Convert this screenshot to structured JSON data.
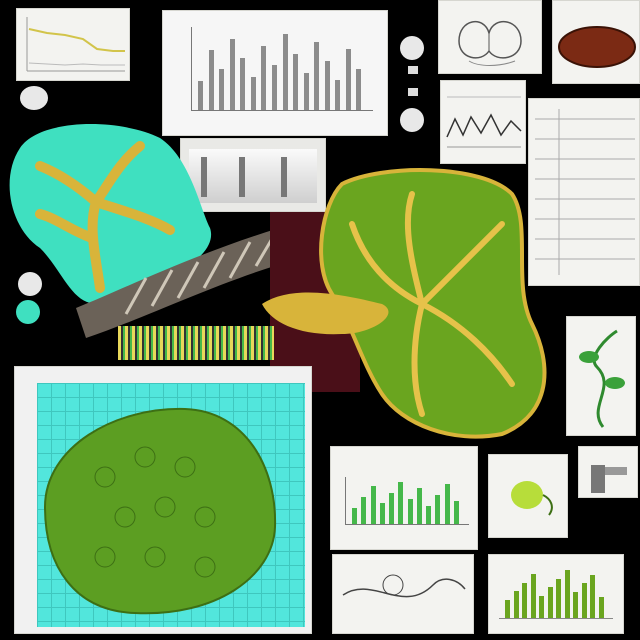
{
  "palette": {
    "background": "#000000",
    "teal": "#3fe0c0",
    "lime": "#6aa51f",
    "leaf_green": "#5c9e22",
    "gold": "#d8b43a",
    "maroon": "#4a0f18",
    "paper": "#f3f3f0",
    "grid_cyan": "#52e6dc",
    "bar_gray": "#8c8c8c",
    "bar_green": "#45b84a"
  },
  "icons": [
    "leaf-icon",
    "vine-icon",
    "seed-icon",
    "vessel-icon"
  ],
  "panels": {
    "top_left_line_plot": "line-plot-thumbnail",
    "top_center_bar_chart": "gray-bar-chart",
    "bottom_center_bar_chart": "green-bar-chart",
    "bottom_right_plot": "sprout-plot"
  }
}
